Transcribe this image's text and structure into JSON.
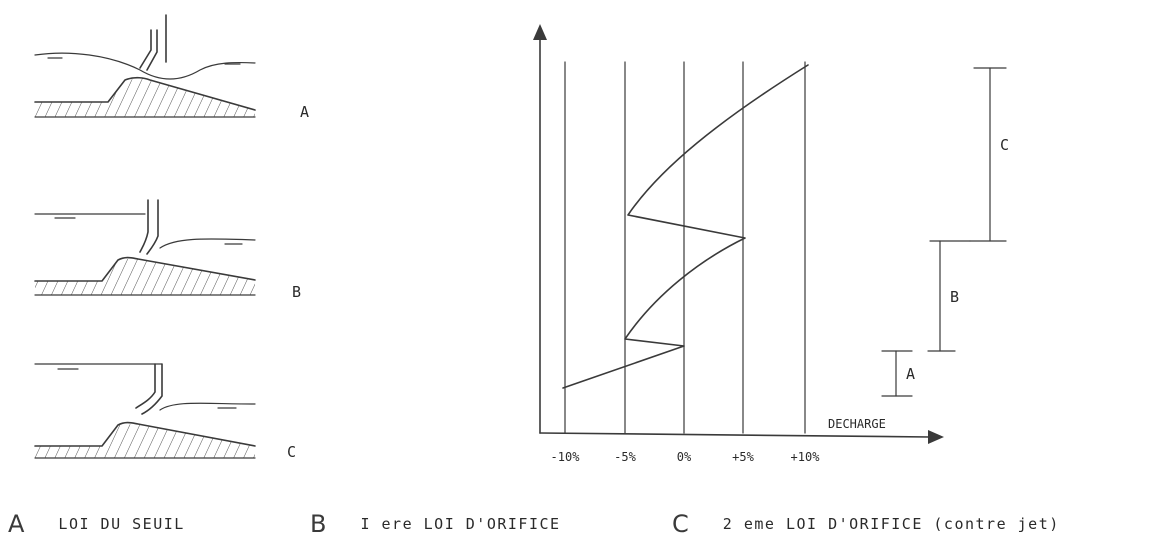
{
  "panels": [
    {
      "letter": "A"
    },
    {
      "letter": "B"
    },
    {
      "letter": "C"
    }
  ],
  "graph": {
    "xlabel": "DECHARGE",
    "ticks": [
      "-10%",
      "-5%",
      "0%",
      "+5%",
      "+10%"
    ],
    "ranges": [
      {
        "letter": "C"
      },
      {
        "letter": "B"
      },
      {
        "letter": "A"
      }
    ]
  },
  "legend": [
    {
      "key": "A",
      "text": "LOI DU SEUIL"
    },
    {
      "key": "B",
      "text": "I ere LOI D'ORIFICE"
    },
    {
      "key": "C",
      "text": "2 eme LOI D'ORIFICE (contre jet)"
    }
  ],
  "colors": {
    "ink": "#3a3a3a",
    "background": "#ffffff"
  }
}
